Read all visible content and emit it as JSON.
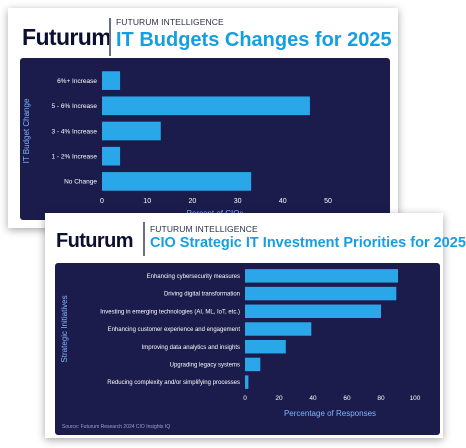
{
  "cards": [
    {
      "brand": "Futurum",
      "kicker": "FUTURUM INTELLIGENCE",
      "title": "IT Budgets Changes for 2025"
    },
    {
      "brand": "Futurum",
      "kicker": "FUTURUM INTELLIGENCE",
      "title": "CIO Strategic IT Investment Priorities for 2025",
      "source": "Source: Futurum Research 2024 CIO Insights IQ"
    }
  ],
  "colors": {
    "bar": "#2aa7e8",
    "panel": "#1c1c4c",
    "title": "#169fe0",
    "brand": "#0c1030",
    "axis_text": "#ffffff",
    "axis_title": "#7fb6ff"
  },
  "chart_data": [
    {
      "type": "bar",
      "orientation": "horizontal",
      "title": "IT Budgets Changes for 2025",
      "categories": [
        "6%+ Increase",
        "5 - 6% Increase",
        "3 - 4% Increase",
        "1 - 2% Increase",
        "No Change"
      ],
      "values": [
        4,
        46,
        13,
        4,
        33
      ],
      "xlabel": "Percent of CIOs",
      "ylabel": "IT Budget Change",
      "xlim": [
        0,
        50
      ],
      "xticks": [
        0,
        10,
        20,
        30,
        40,
        50
      ],
      "grid": false
    },
    {
      "type": "bar",
      "orientation": "horizontal",
      "title": "CIO Strategic IT Investment Priorities for 2025",
      "categories": [
        "Enhancing cybersecurity measures",
        "Driving digital transformation",
        "Investing in emerging technologies (AI, ML, IoT, etc.)",
        "Enhancing customer experience and engagement",
        "Improving data analytics and insights",
        "Upgrading legacy systems",
        "Reducing complexity and/or simplifying processes"
      ],
      "values": [
        90,
        89,
        80,
        39,
        24,
        9,
        2
      ],
      "xlabel": "Percentage of Responses",
      "ylabel": "Strategic Initiatives",
      "xlim": [
        0,
        100
      ],
      "xticks": [
        0,
        20,
        40,
        60,
        80,
        100
      ],
      "grid": false
    }
  ]
}
